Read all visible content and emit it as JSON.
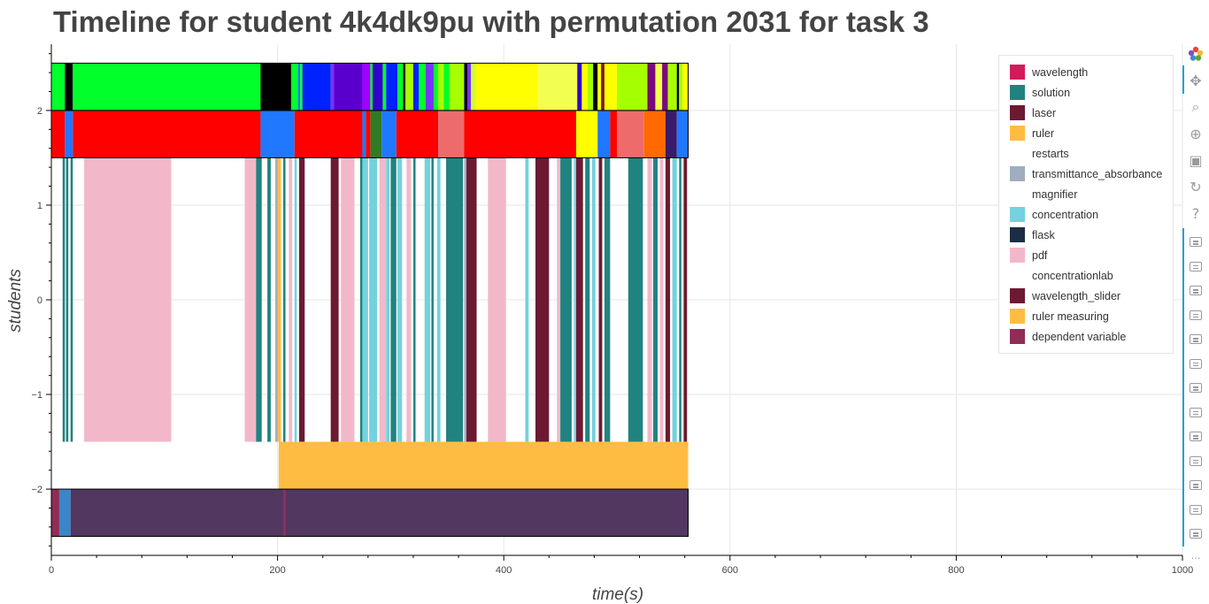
{
  "chart_data": {
    "type": "timeline",
    "title": "Timeline for student 4k4dk9pu with permutation 2031 for task 3",
    "xlabel": "time(s)",
    "ylabel": "students",
    "xlim": [
      0,
      1000
    ],
    "ylim": [
      -2.7,
      2.7
    ],
    "x_ticks": [
      0,
      200,
      400,
      600,
      800,
      1000
    ],
    "y_ticks": [
      -2,
      -1,
      0,
      1,
      2
    ],
    "y_tick_labels": [
      "−2",
      "−1",
      "0",
      "1",
      "2"
    ],
    "grid": true,
    "legend_position": "top-right",
    "legend": [
      {
        "name": "wavelength",
        "color": "#d6195a"
      },
      {
        "name": "solution",
        "color": "#218380"
      },
      {
        "name": "laser",
        "color": "#6b1a32"
      },
      {
        "name": "ruler",
        "color": "#ffbc42"
      },
      {
        "name": "restarts",
        "color": "#ffffff"
      },
      {
        "name": "transmittance_absorbance",
        "color": "#9fadbf"
      },
      {
        "name": "magnifier",
        "color": "#ffffff"
      },
      {
        "name": "concentration",
        "color": "#73d2de"
      },
      {
        "name": "flask",
        "color": "#1c2e45"
      },
      {
        "name": "pdf",
        "color": "#f2b8c9"
      },
      {
        "name": "concentrationlab",
        "color": "#ffffff"
      },
      {
        "name": "wavelength_slider",
        "color": "#6b1a32"
      },
      {
        "name": "ruler measuring",
        "color": "#ffbc42"
      },
      {
        "name": "dependent variable",
        "color": "#8f2d56"
      }
    ],
    "rows": [
      {
        "y_range": [
          2,
          2.5
        ],
        "segments": [
          {
            "start": 0,
            "end": 12,
            "color": "#00ff2b"
          },
          {
            "start": 12,
            "end": 19,
            "color": "#000000"
          },
          {
            "start": 19,
            "end": 185,
            "color": "#00ff2b"
          },
          {
            "start": 185,
            "end": 212,
            "color": "#000000"
          },
          {
            "start": 212,
            "end": 218,
            "color": "#00ff2b"
          },
          {
            "start": 218,
            "end": 220,
            "color": "#1f78ff"
          },
          {
            "start": 220,
            "end": 222,
            "color": "#00ff2b"
          },
          {
            "start": 222,
            "end": 247,
            "color": "#0022ff"
          },
          {
            "start": 247,
            "end": 250,
            "color": "#7a33ff"
          },
          {
            "start": 250,
            "end": 275,
            "color": "#5a00cc"
          },
          {
            "start": 275,
            "end": 282,
            "color": "#9f00ff"
          },
          {
            "start": 282,
            "end": 284,
            "color": "#00ff2b"
          },
          {
            "start": 284,
            "end": 293,
            "color": "#3300cc"
          },
          {
            "start": 293,
            "end": 296,
            "color": "#00ff2b"
          },
          {
            "start": 296,
            "end": 306,
            "color": "#0022ff"
          },
          {
            "start": 306,
            "end": 311,
            "color": "#00ff2b"
          },
          {
            "start": 311,
            "end": 313,
            "color": "#000000"
          },
          {
            "start": 313,
            "end": 320,
            "color": "#a6ff00"
          },
          {
            "start": 320,
            "end": 325,
            "color": "#0022ff"
          },
          {
            "start": 325,
            "end": 331,
            "color": "#00ff2b"
          },
          {
            "start": 331,
            "end": 338,
            "color": "#7a33ff"
          },
          {
            "start": 338,
            "end": 342,
            "color": "#00ff2b"
          },
          {
            "start": 342,
            "end": 347,
            "color": "#a6ff00"
          },
          {
            "start": 347,
            "end": 352,
            "color": "#00ff2b"
          },
          {
            "start": 352,
            "end": 365,
            "color": "#a6ff00"
          },
          {
            "start": 365,
            "end": 368,
            "color": "#000000"
          },
          {
            "start": 368,
            "end": 371,
            "color": "#7a33ff"
          },
          {
            "start": 371,
            "end": 375,
            "color": "#d0ff30"
          },
          {
            "start": 375,
            "end": 430,
            "color": "#ffff00"
          },
          {
            "start": 430,
            "end": 465,
            "color": "#f2ff50"
          },
          {
            "start": 465,
            "end": 469,
            "color": "#3300cc"
          },
          {
            "start": 469,
            "end": 474,
            "color": "#ffff00"
          },
          {
            "start": 474,
            "end": 479,
            "color": "#a6ff00"
          },
          {
            "start": 479,
            "end": 483,
            "color": "#000000"
          },
          {
            "start": 483,
            "end": 486,
            "color": "#ffff00"
          },
          {
            "start": 486,
            "end": 489,
            "color": "#7a1a1a"
          },
          {
            "start": 489,
            "end": 500,
            "color": "#ffff00"
          },
          {
            "start": 500,
            "end": 527,
            "color": "#a6ff00"
          },
          {
            "start": 527,
            "end": 534,
            "color": "#7a0a7a"
          },
          {
            "start": 534,
            "end": 540,
            "color": "#f2ff50"
          },
          {
            "start": 540,
            "end": 545,
            "color": "#7a0a7a"
          },
          {
            "start": 545,
            "end": 553,
            "color": "#a6ff00"
          },
          {
            "start": 553,
            "end": 555,
            "color": "#000000"
          },
          {
            "start": 555,
            "end": 558,
            "color": "#a6ff00"
          },
          {
            "start": 558,
            "end": 563,
            "color": "#ffff00"
          }
        ]
      },
      {
        "y_range": [
          1.5,
          2
        ],
        "segments": [
          {
            "start": 0,
            "end": 12,
            "color": "#ff0000"
          },
          {
            "start": 12,
            "end": 19,
            "color": "#1f78ff"
          },
          {
            "start": 19,
            "end": 185,
            "color": "#ff0000"
          },
          {
            "start": 185,
            "end": 215,
            "color": "#1f78ff"
          },
          {
            "start": 215,
            "end": 275,
            "color": "#ff0000"
          },
          {
            "start": 275,
            "end": 278,
            "color": "#1f78ff"
          },
          {
            "start": 278,
            "end": 282,
            "color": "#ff0000"
          },
          {
            "start": 282,
            "end": 292,
            "color": "#317a26"
          },
          {
            "start": 292,
            "end": 305,
            "color": "#1f78ff"
          },
          {
            "start": 305,
            "end": 342,
            "color": "#ff0000"
          },
          {
            "start": 342,
            "end": 365,
            "color": "#ee6b6b"
          },
          {
            "start": 365,
            "end": 464,
            "color": "#ff0000"
          },
          {
            "start": 464,
            "end": 483,
            "color": "#ffff00"
          },
          {
            "start": 483,
            "end": 494,
            "color": "#1f78ff"
          },
          {
            "start": 494,
            "end": 500,
            "color": "#ff0000"
          },
          {
            "start": 500,
            "end": 524,
            "color": "#ee6b6b"
          },
          {
            "start": 524,
            "end": 543,
            "color": "#ff6a00"
          },
          {
            "start": 543,
            "end": 553,
            "color": "#3a1a6b"
          },
          {
            "start": 553,
            "end": 563,
            "color": "#1f78ff"
          }
        ]
      },
      {
        "y_range": [
          -1.5,
          1.5
        ],
        "segments": [
          {
            "start": 10,
            "end": 12,
            "color": "#218380"
          },
          {
            "start": 13,
            "end": 15,
            "color": "#218380"
          },
          {
            "start": 17,
            "end": 19,
            "color": "#218380"
          },
          {
            "start": 29,
            "end": 106,
            "color": "#f2b8c9"
          },
          {
            "start": 171,
            "end": 181,
            "color": "#f2b8c9"
          },
          {
            "start": 181,
            "end": 186,
            "color": "#218380"
          },
          {
            "start": 191,
            "end": 194,
            "color": "#218380"
          },
          {
            "start": 198,
            "end": 200,
            "color": "#9fadbf"
          },
          {
            "start": 200,
            "end": 203,
            "color": "#ffbc42"
          },
          {
            "start": 205,
            "end": 207,
            "color": "#218380"
          },
          {
            "start": 210,
            "end": 213,
            "color": "#f2b8c9"
          },
          {
            "start": 215,
            "end": 217,
            "color": "#73d2de"
          },
          {
            "start": 219,
            "end": 224,
            "color": "#6b1a32"
          },
          {
            "start": 247,
            "end": 254,
            "color": "#6b1a32"
          },
          {
            "start": 256,
            "end": 268,
            "color": "#f2b8c9"
          },
          {
            "start": 273,
            "end": 275,
            "color": "#218380"
          },
          {
            "start": 275,
            "end": 280,
            "color": "#73d2de"
          },
          {
            "start": 281,
            "end": 288,
            "color": "#73d2de"
          },
          {
            "start": 290,
            "end": 296,
            "color": "#f2b8c9"
          },
          {
            "start": 296,
            "end": 299,
            "color": "#73d2de"
          },
          {
            "start": 300,
            "end": 305,
            "color": "#218380"
          },
          {
            "start": 306,
            "end": 310,
            "color": "#73d2de"
          },
          {
            "start": 314,
            "end": 318,
            "color": "#f2b8c9"
          },
          {
            "start": 320,
            "end": 322,
            "color": "#218380"
          },
          {
            "start": 330,
            "end": 335,
            "color": "#73d2de"
          },
          {
            "start": 336,
            "end": 338,
            "color": "#218380"
          },
          {
            "start": 341,
            "end": 344,
            "color": "#73d2de"
          },
          {
            "start": 349,
            "end": 364,
            "color": "#218380"
          },
          {
            "start": 365,
            "end": 367,
            "color": "#9fadbf"
          },
          {
            "start": 367,
            "end": 376,
            "color": "#6b1a32"
          },
          {
            "start": 386,
            "end": 402,
            "color": "#f2b8c9"
          },
          {
            "start": 419,
            "end": 422,
            "color": "#73d2de"
          },
          {
            "start": 428,
            "end": 440,
            "color": "#6b1a32"
          },
          {
            "start": 447,
            "end": 450,
            "color": "#f2b8c9"
          },
          {
            "start": 450,
            "end": 460,
            "color": "#218380"
          },
          {
            "start": 462,
            "end": 464,
            "color": "#73d2de"
          },
          {
            "start": 464,
            "end": 470,
            "color": "#6b1a32"
          },
          {
            "start": 472,
            "end": 476,
            "color": "#218380"
          },
          {
            "start": 478,
            "end": 481,
            "color": "#73d2de"
          },
          {
            "start": 484,
            "end": 487,
            "color": "#6b1a32"
          },
          {
            "start": 489,
            "end": 494,
            "color": "#218380"
          },
          {
            "start": 510,
            "end": 523,
            "color": "#218380"
          },
          {
            "start": 527,
            "end": 531,
            "color": "#f2b8c9"
          },
          {
            "start": 532,
            "end": 536,
            "color": "#218380"
          },
          {
            "start": 538,
            "end": 541,
            "color": "#f2b8c9"
          },
          {
            "start": 543,
            "end": 547,
            "color": "#6b1a32"
          },
          {
            "start": 549,
            "end": 553,
            "color": "#73d2de"
          },
          {
            "start": 555,
            "end": 557,
            "color": "#218380"
          },
          {
            "start": 559,
            "end": 562,
            "color": "#6b1a32"
          }
        ]
      },
      {
        "y_range": [
          -2,
          -1.5
        ],
        "segments": [
          {
            "start": 201,
            "end": 563,
            "color": "#ffbc42"
          }
        ]
      },
      {
        "y_range": [
          -2.5,
          -2
        ],
        "segments": [
          {
            "start": 0,
            "end": 7,
            "color": "#8f2d56"
          },
          {
            "start": 7,
            "end": 17,
            "color": "#3a86c8"
          },
          {
            "start": 17,
            "end": 205,
            "color": "#523761"
          },
          {
            "start": 205,
            "end": 207,
            "color": "#8f2d56"
          },
          {
            "start": 207,
            "end": 563,
            "color": "#523761"
          }
        ]
      }
    ]
  },
  "toolbar": {
    "tools": [
      {
        "name": "bokeh-logo-icon"
      },
      {
        "name": "pan-icon",
        "glyph": "✥"
      },
      {
        "name": "box-zoom-icon",
        "glyph": "⌕"
      },
      {
        "name": "wheel-zoom-icon",
        "glyph": "⊕"
      },
      {
        "name": "save-icon",
        "glyph": "▣"
      },
      {
        "name": "reset-icon",
        "glyph": "↻"
      },
      {
        "name": "help-icon",
        "glyph": "?"
      }
    ],
    "hover_tool_count": 13,
    "more_label": "..."
  }
}
